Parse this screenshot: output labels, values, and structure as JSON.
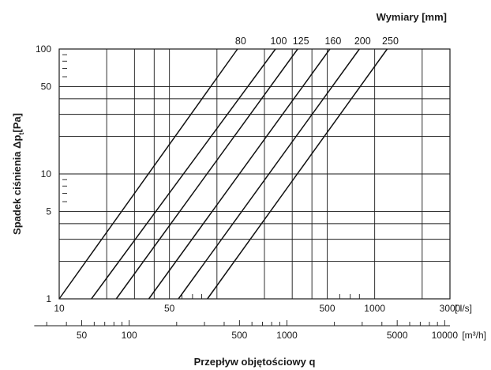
{
  "chart_data": {
    "type": "line",
    "x_scale": "log",
    "y_scale": "log",
    "xlim": [
      10,
      3000
    ],
    "ylim": [
      1,
      100
    ],
    "x_unit_text": "[ l/s]",
    "y_label": "Spadek ciśnienia Δp",
    "y_label_sub": "t",
    "y_label_unit": "[Pa]",
    "x_label": "Przepływ objętościowy q",
    "sizes_title": "Wymiary [mm]",
    "x_ticks": [
      {
        "v": 10,
        "label": "10"
      },
      {
        "v": 50,
        "label": "50"
      },
      {
        "v": 500,
        "label": "500"
      },
      {
        "v": 1000,
        "label": "1000"
      },
      {
        "v": 3000,
        "label": "3000"
      }
    ],
    "x_grid": [
      20,
      30,
      40,
      50,
      100,
      200,
      300,
      400,
      500,
      1000,
      2000
    ],
    "y_ticks": [
      {
        "v": 1,
        "label": "1"
      },
      {
        "v": 5,
        "label": "5"
      },
      {
        "v": 10,
        "label": "10"
      },
      {
        "v": 50,
        "label": "50"
      },
      {
        "v": 100,
        "label": "100"
      }
    ],
    "y_grid": [
      2,
      3,
      4,
      5,
      10,
      20,
      30,
      40,
      50
    ],
    "m3h_ticks": [
      {
        "v": 50,
        "label": "50"
      },
      {
        "v": 100,
        "label": "100"
      },
      {
        "v": 500,
        "label": "500"
      },
      {
        "v": 1000,
        "label": "1000"
      },
      {
        "v": 5000,
        "label": "5000"
      },
      {
        "v": 10000,
        "label": "10000"
      }
    ],
    "m3h_unit": "[m³/h]",
    "series": [
      {
        "name": "80",
        "x": [
          10,
          135
        ],
        "y": [
          1,
          100
        ]
      },
      {
        "name": "100",
        "x": [
          16,
          235
        ],
        "y": [
          1,
          100
        ]
      },
      {
        "name": "125",
        "x": [
          23,
          325
        ],
        "y": [
          1,
          100
        ]
      },
      {
        "name": "160",
        "x": [
          37,
          520
        ],
        "y": [
          1,
          100
        ]
      },
      {
        "name": "200",
        "x": [
          57,
          800
        ],
        "y": [
          1,
          100
        ]
      },
      {
        "name": "250",
        "x": [
          87,
          1200
        ],
        "y": [
          1,
          100
        ]
      }
    ]
  }
}
